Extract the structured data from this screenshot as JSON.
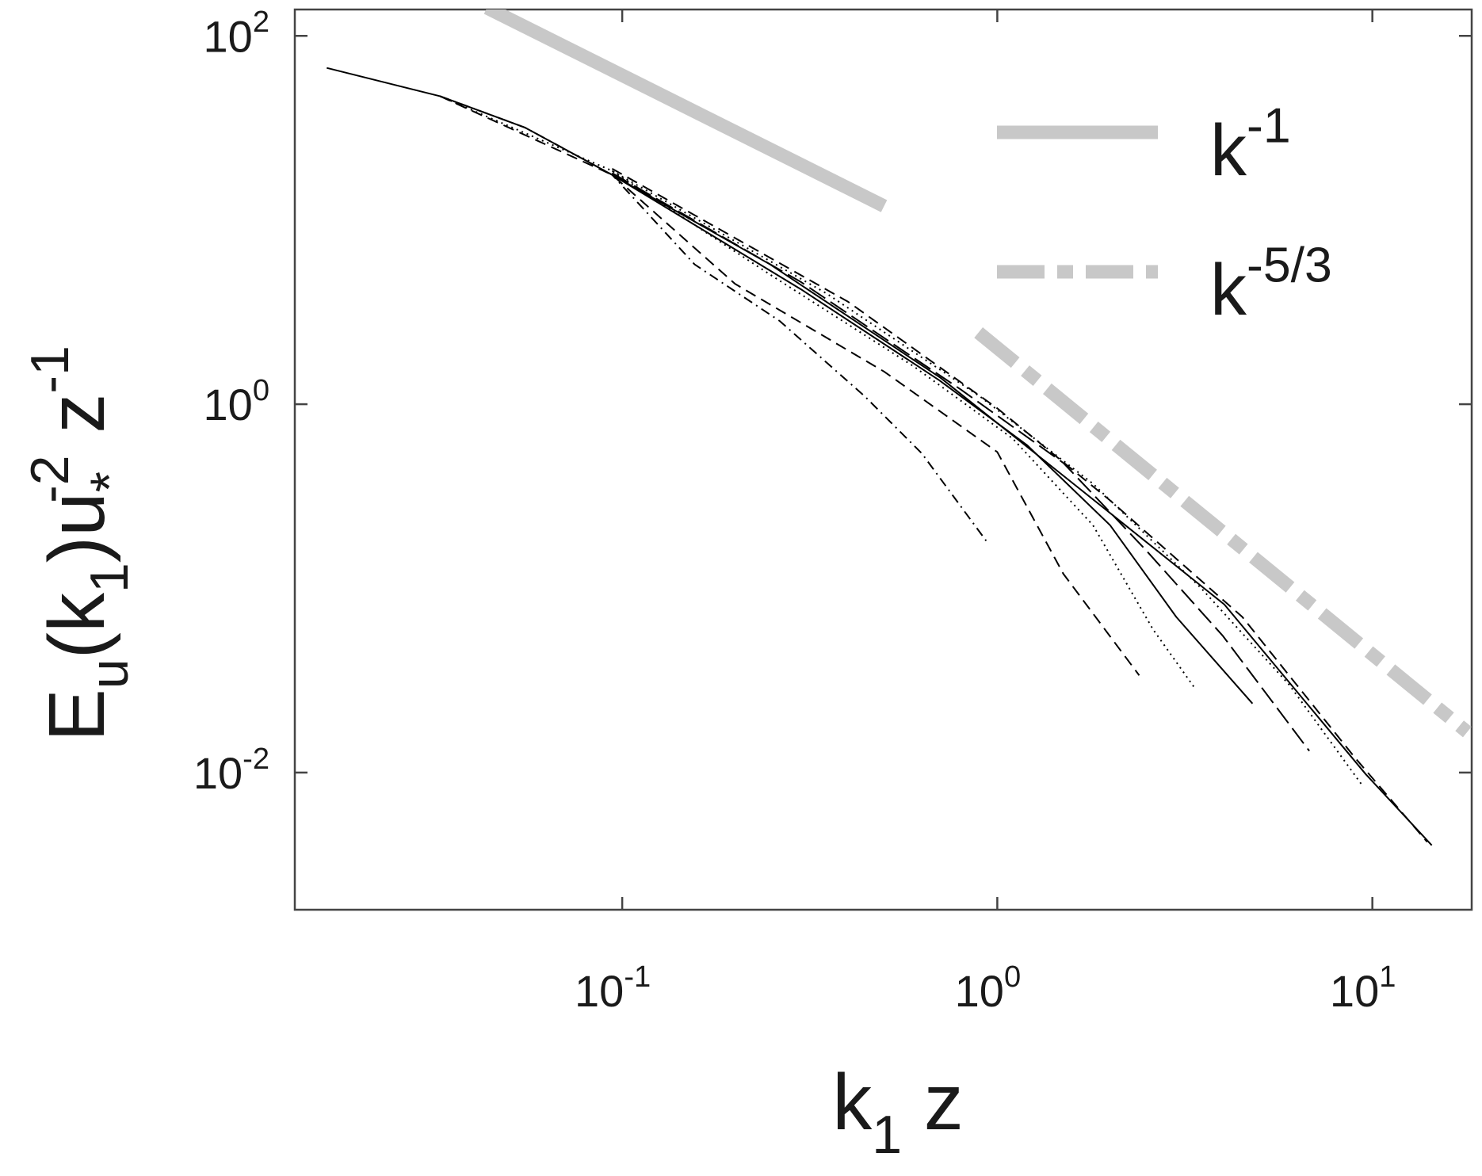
{
  "chart_data": {
    "type": "line",
    "xscale": "log",
    "yscale": "log",
    "xlim": [
      0.0134,
      18.4
    ],
    "ylim": [
      0.0018,
      139
    ],
    "xticks": [
      {
        "value": 0.1,
        "label": "10",
        "exponent": "-1"
      },
      {
        "value": 1,
        "label": "10",
        "exponent": "0"
      },
      {
        "value": 10,
        "label": "10",
        "exponent": "1"
      }
    ],
    "yticks": [
      {
        "value": 0.01,
        "label": "10",
        "exponent": "-2"
      },
      {
        "value": 1,
        "label": "10",
        "exponent": "0"
      },
      {
        "value": 100,
        "label": "10",
        "exponent": "2"
      }
    ],
    "xlabel": [
      {
        "text": "k"
      },
      {
        "sub": "1"
      },
      {
        "text": " z"
      }
    ],
    "ylabel": [
      {
        "text": "E"
      },
      {
        "sub": "u"
      },
      {
        "text": "(k"
      },
      {
        "sub": "1"
      },
      {
        "text": ")u"
      },
      {
        "sub": "*"
      },
      {
        "sup": "-2"
      },
      {
        "text": " z"
      },
      {
        "sup": "-1"
      }
    ],
    "legend": "upper right",
    "grid": false,
    "series": [
      {
        "color": "#000000",
        "dash": "solid",
        "width": 2,
        "x": [
          0.0163,
          0.0327,
          0.055,
          0.094,
          0.248,
          0.706,
          1.69,
          4.03,
          9.6,
          14.4
        ],
        "values": [
          67,
          47,
          31.8,
          17.6,
          5.74,
          1.39,
          0.337,
          0.0818,
          0.0098,
          0.00403
        ]
      },
      {
        "color": "#000000",
        "dash": "dashdot",
        "width": 2,
        "x": [
          0.0327,
          0.055,
          0.094,
          0.156,
          0.263,
          0.444,
          0.629,
          0.944
        ],
        "values": [
          47,
          31.8,
          17.6,
          5.74,
          2.83,
          1.1,
          0.541,
          0.176
        ]
      },
      {
        "color": "#000000",
        "dash": "dashed",
        "width": 2,
        "x": [
          0.0327,
          0.094,
          0.2,
          0.5,
          1.0,
          1.5,
          2.39
        ],
        "values": [
          47,
          17.6,
          4.5,
          1.5,
          0.55,
          0.12,
          0.0337
        ]
      },
      {
        "color": "#000000",
        "dash": "dotted",
        "width": 2,
        "x": [
          0.0327,
          0.094,
          0.25,
          0.6,
          1.1,
          1.8,
          2.6,
          3.38
        ],
        "values": [
          47,
          18.5,
          5.0,
          1.6,
          0.65,
          0.22,
          0.06,
          0.0283
        ]
      },
      {
        "color": "#000000",
        "dash": "solid",
        "width": 2,
        "x": [
          0.094,
          0.3,
          0.7,
          1.2,
          2.0,
          3.0,
          4.79
        ],
        "values": [
          17.6,
          4.2,
          1.35,
          0.6,
          0.22,
          0.07,
          0.0237
        ]
      },
      {
        "color": "#000000",
        "dash": "longdash",
        "width": 2,
        "x": [
          0.094,
          0.3,
          0.8,
          1.5,
          2.5,
          4.0,
          6.79
        ],
        "values": [
          18,
          4.6,
          1.2,
          0.48,
          0.16,
          0.055,
          0.0131
        ]
      },
      {
        "color": "#000000",
        "dash": "dotted",
        "width": 2,
        "x": [
          0.094,
          0.35,
          0.9,
          1.8,
          3.5,
          6,
          9.33
        ],
        "values": [
          18.5,
          4.0,
          1.1,
          0.37,
          0.1,
          0.03,
          0.0087
        ]
      },
      {
        "color": "#000000",
        "dash": "dashed",
        "width": 2,
        "x": [
          0.094,
          0.4,
          1.0,
          2.0,
          4.5,
          9,
          14.0
        ],
        "values": [
          19,
          3.6,
          0.95,
          0.3,
          0.07,
          0.012,
          0.0042
        ]
      },
      {
        "name": "k",
        "name_exponent": "-1",
        "color": "#c8c8c8",
        "dash": "solid",
        "width": 17,
        "x": [
          0.0436,
          0.499
        ],
        "values": [
          142,
          11.9
        ]
      },
      {
        "name": "k",
        "name_exponent": "-5/3",
        "color": "#c8c8c8",
        "dash": "refdashdot",
        "width": 17,
        "x": [
          0.891,
          17.9
        ],
        "values": [
          2.45,
          0.0166
        ]
      }
    ]
  }
}
